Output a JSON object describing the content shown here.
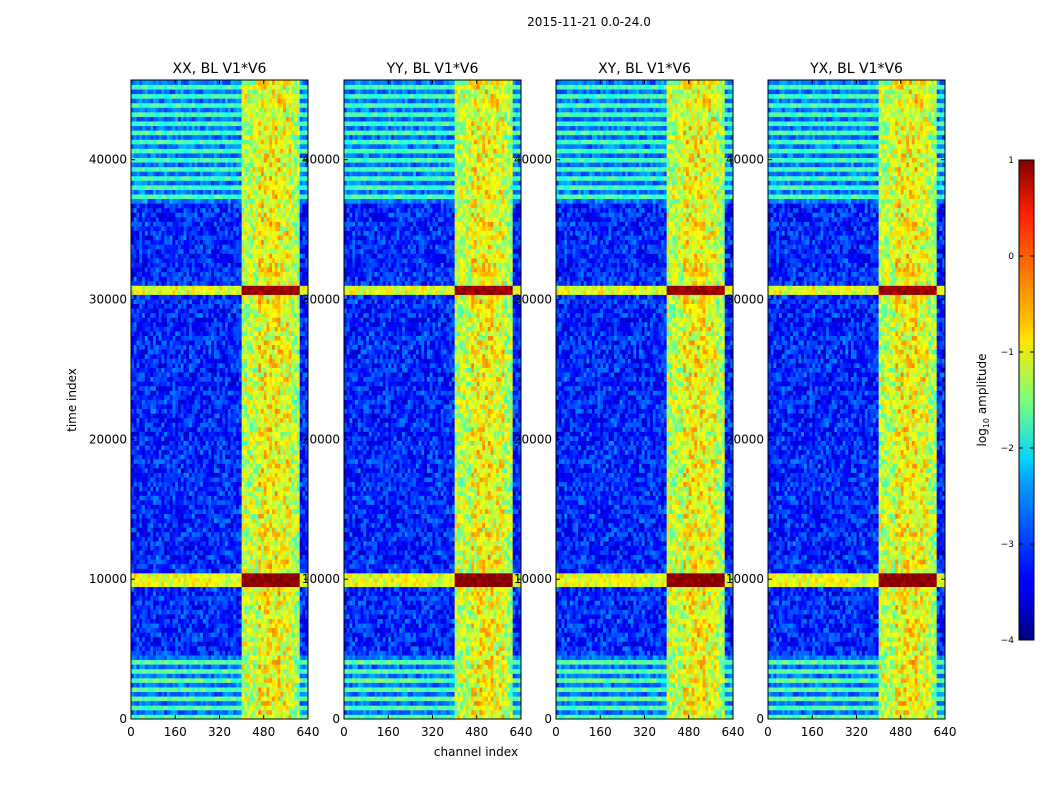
{
  "figure": {
    "suptitle": "2015-11-21 0.0-24.0",
    "xlabel": "channel index",
    "ylabel": "time index"
  },
  "chart_data": {
    "type": "heatmap",
    "colormap": "jet",
    "panels": [
      {
        "title": "XX, BL V1*V6"
      },
      {
        "title": "YY, BL V1*V6"
      },
      {
        "title": "XY, BL V1*V6"
      },
      {
        "title": "YX, BL V1*V6"
      }
    ],
    "x_range": [
      0,
      640
    ],
    "y_range": [
      0,
      45700
    ],
    "x_ticks": [
      0,
      160,
      320,
      480,
      640
    ],
    "y_ticks": [
      0,
      10000,
      20000,
      30000,
      40000
    ],
    "colorbar": {
      "label": "log10 amplitude",
      "label_base": "log",
      "label_sub": "10",
      "label_rest": " amplitude",
      "range": [
        -4,
        1
      ],
      "ticks": [
        {
          "value": 1,
          "label": "1"
        },
        {
          "value": 0,
          "label": "0"
        },
        {
          "value": -1,
          "label": "−1"
        },
        {
          "value": -2,
          "label": "−2"
        },
        {
          "value": -3,
          "label": "−3"
        },
        {
          "value": -4,
          "label": "−4"
        }
      ]
    },
    "channel_bands": [
      {
        "start": 400,
        "end": 460,
        "level": -1.2
      },
      {
        "start": 465,
        "end": 500,
        "level": -0.9
      },
      {
        "start": 505,
        "end": 540,
        "level": -0.9
      },
      {
        "start": 545,
        "end": 580,
        "level": -1.0
      },
      {
        "start": 585,
        "end": 610,
        "level": -1.3
      }
    ],
    "time_features": [
      {
        "start": 0,
        "end": 4600,
        "level": -1.7,
        "note": "striped low band"
      },
      {
        "start": 9600,
        "end": 10400,
        "level": 0.9,
        "note": "strong horizontal stripe"
      },
      {
        "start": 30500,
        "end": 31000,
        "level": 0.8,
        "note": "saturated stripe in bands"
      },
      {
        "start": 36800,
        "end": 45700,
        "level": -1.8,
        "note": "striped high band"
      }
    ],
    "background_level": -3.2
  }
}
